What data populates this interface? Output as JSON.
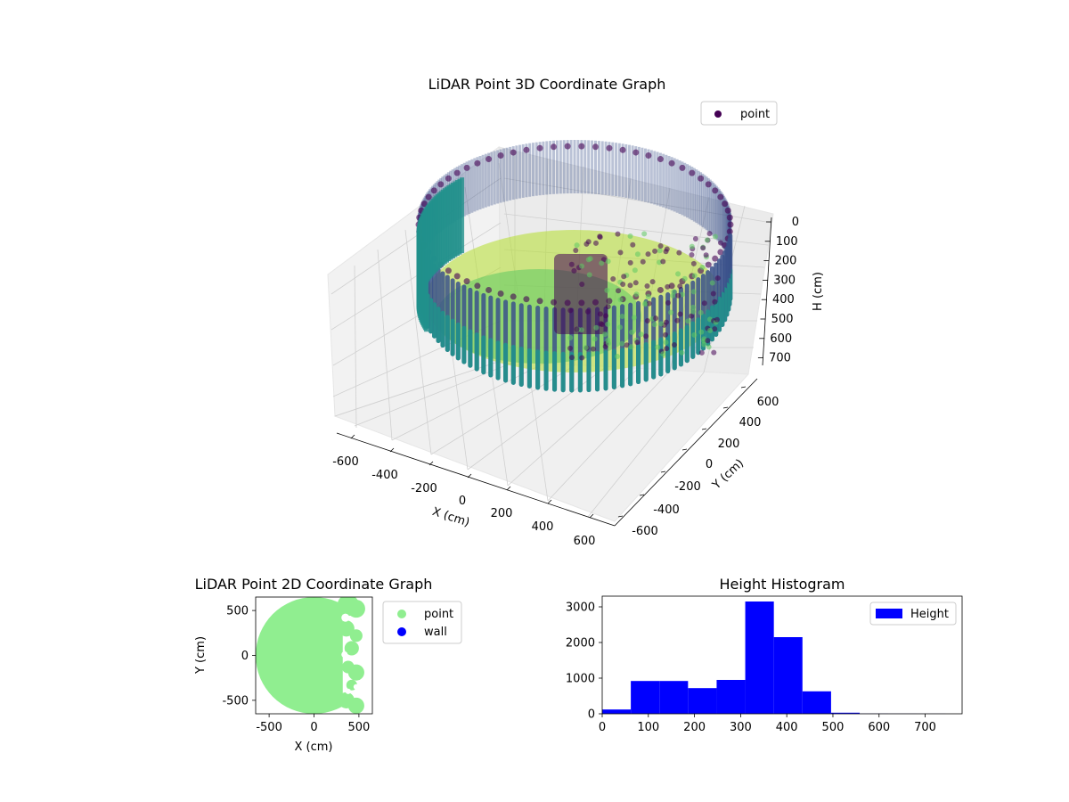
{
  "colors": {
    "wall_dark": "#440154",
    "wall_mid": "#3b528b",
    "wall_teal": "#21918c",
    "wall_green": "#5ec962",
    "floor_yellow": "#b5de2b",
    "point_2d": "#90ee90",
    "wall_2d": "#0000ff",
    "hist_bar": "#0000ff"
  },
  "chart_data": [
    {
      "type": "scatter",
      "title": "LiDAR Point 3D Coordinate Graph",
      "legend": [
        "point"
      ],
      "legend_position": "top-right",
      "xlabel": "X (cm)",
      "ylabel": "Y (cm)",
      "zlabel": "H (cm)",
      "xlim": [
        -650,
        650
      ],
      "ylim": [
        -650,
        650
      ],
      "zlim": [
        0,
        750
      ],
      "xticks": [
        -600,
        -400,
        -200,
        0,
        200,
        400,
        600
      ],
      "yticks": [
        -600,
        -400,
        -200,
        0,
        200,
        400,
        600
      ],
      "zticks": [
        0,
        100,
        200,
        300,
        400,
        500,
        600,
        700
      ],
      "grid": true
    },
    {
      "type": "scatter",
      "title": "LiDAR Point 2D Coordinate Graph",
      "legend": [
        "point",
        "wall"
      ],
      "legend_position": "outside-right",
      "xlabel": "X (cm)",
      "ylabel": "Y (cm)",
      "xlim": [
        -650,
        650
      ],
      "ylim": [
        -650,
        650
      ],
      "xticks": [
        -500,
        0,
        500
      ],
      "yticks": [
        -500,
        0,
        500
      ]
    },
    {
      "type": "bar",
      "title": "Height Histogram",
      "legend": [
        "Height"
      ],
      "legend_position": "top-right",
      "bin_edges": [
        0,
        62,
        124,
        186,
        248,
        310,
        372,
        434,
        496,
        558,
        620,
        682,
        744
      ],
      "values": [
        120,
        920,
        920,
        720,
        950,
        3150,
        2150,
        630,
        30,
        5,
        3,
        2
      ],
      "xlim": [
        0,
        780
      ],
      "ylim": [
        0,
        3300
      ],
      "xticks": [
        0,
        100,
        200,
        300,
        400,
        500,
        600,
        700
      ],
      "yticks": [
        0,
        1000,
        2000,
        3000
      ]
    }
  ]
}
